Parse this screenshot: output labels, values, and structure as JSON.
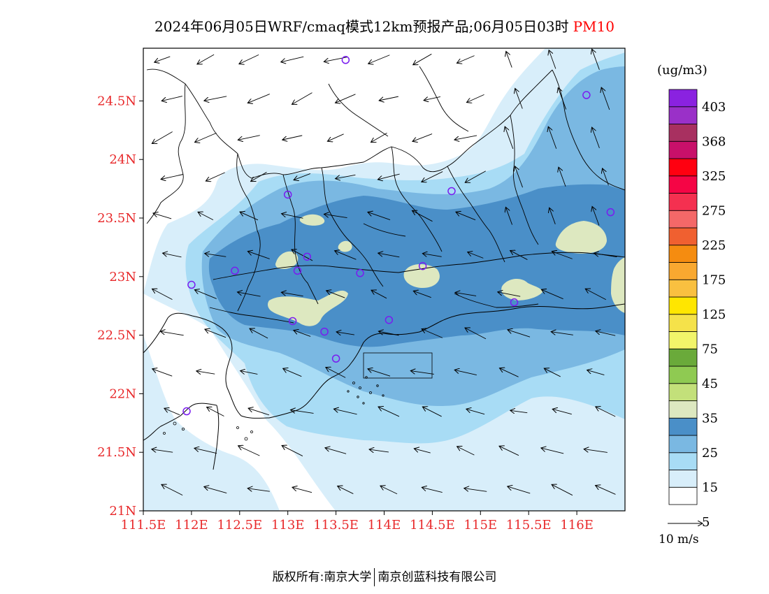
{
  "title": {
    "main": "2024年06月05日WRF/cmaq模式12km预报产品;06月05日03时",
    "pollutant": "PM10"
  },
  "axes": {
    "lat_ticks": [
      "24.5N",
      "24N",
      "23.5N",
      "23N",
      "22.5N",
      "22N",
      "21.5N",
      "21N"
    ],
    "lon_ticks": [
      "111.5E",
      "112E",
      "112.5E",
      "113E",
      "113.5E",
      "114E",
      "114.5E",
      "115E",
      "115.5E",
      "116E"
    ],
    "lat_range": [
      21,
      24.95
    ],
    "lon_range": [
      111.5,
      116.5
    ]
  },
  "legend": {
    "unit": "(ug/m3)",
    "labels": [
      "403",
      "368",
      "325",
      "275",
      "225",
      "175",
      "125",
      "75",
      "45",
      "35",
      "25",
      "15",
      "5"
    ],
    "colors": [
      "#ffffff",
      "#d8eefa",
      "#a8dcf5",
      "#7ab8e2",
      "#4a8fc8",
      "#dde8c0",
      "#c3e07a",
      "#8fca52",
      "#6aaa3a",
      "#f2f56a",
      "#f5e24a",
      "#ffe600",
      "#f9c040",
      "#f9a830",
      "#f58c10",
      "#f06030",
      "#f46868",
      "#f43050",
      "#f50545",
      "#ff0010",
      "#c8106a",
      "#a83060",
      "#9a30c8",
      "#8a22e0"
    ]
  },
  "wind_reference": "10 m/s",
  "stations": [
    {
      "lon": 113.6,
      "lat": 24.85
    },
    {
      "lon": 116.1,
      "lat": 24.55
    },
    {
      "lon": 113.0,
      "lat": 23.7
    },
    {
      "lon": 114.7,
      "lat": 23.73
    },
    {
      "lon": 116.35,
      "lat": 23.55
    },
    {
      "lon": 112.45,
      "lat": 23.05
    },
    {
      "lon": 113.1,
      "lat": 23.05
    },
    {
      "lon": 113.2,
      "lat": 23.17
    },
    {
      "lon": 113.75,
      "lat": 23.03
    },
    {
      "lon": 114.4,
      "lat": 23.09
    },
    {
      "lon": 112.0,
      "lat": 22.93
    },
    {
      "lon": 115.35,
      "lat": 22.78
    },
    {
      "lon": 113.05,
      "lat": 22.62
    },
    {
      "lon": 113.38,
      "lat": 22.53
    },
    {
      "lon": 114.05,
      "lat": 22.63
    },
    {
      "lon": 113.5,
      "lat": 22.3
    },
    {
      "lon": 111.95,
      "lat": 21.85
    }
  ],
  "copyright": {
    "prefix": "版权所有:",
    "org1": "南京大学",
    "org2": "南京创蓝科技有限公司"
  }
}
